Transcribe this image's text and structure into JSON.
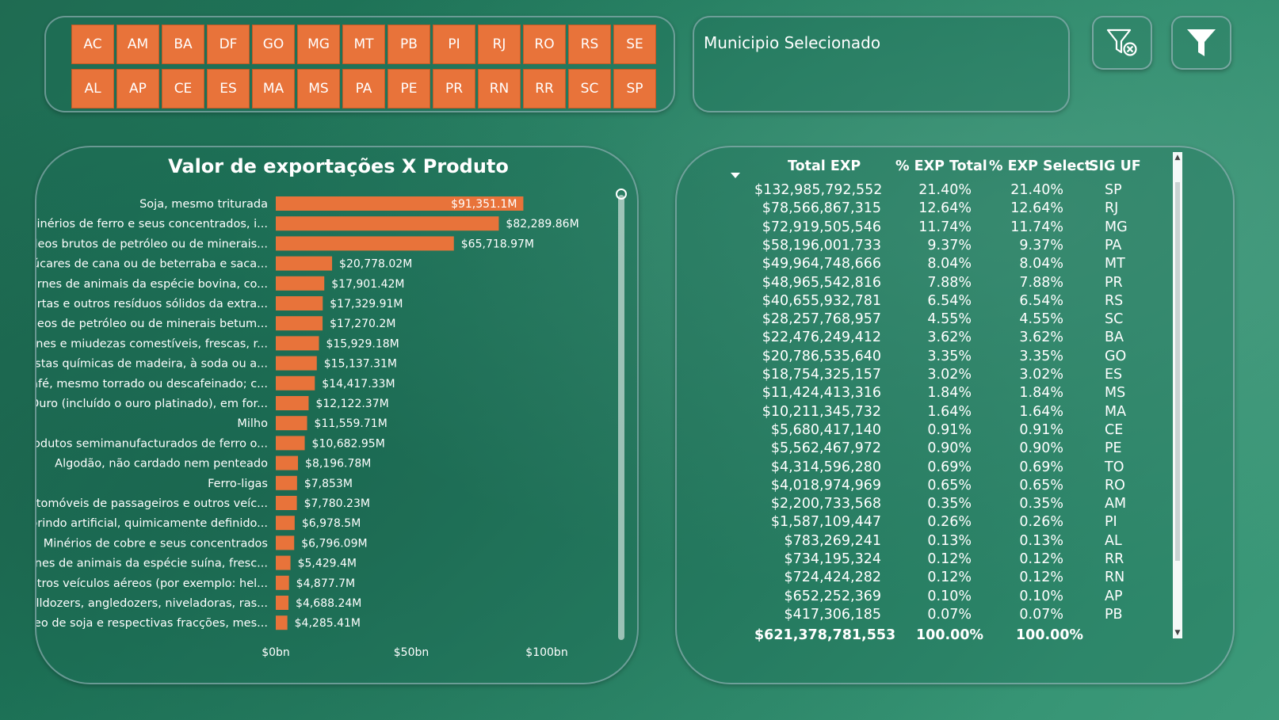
{
  "uf_buttons_row1": [
    "AC",
    "AM",
    "BA",
    "DF",
    "GO",
    "MG",
    "MT",
    "PB",
    "PI",
    "RJ",
    "RO",
    "RS",
    "SE"
  ],
  "uf_buttons_row2": [
    "AL",
    "AP",
    "CE",
    "ES",
    "MA",
    "MS",
    "PA",
    "PE",
    "PR",
    "RN",
    "RR",
    "SC",
    "SP"
  ],
  "municipio": {
    "title": "Municipio Selecionado"
  },
  "icons": {
    "clear_filter": "filter-clear-icon",
    "filter": "filter-icon"
  },
  "colors": {
    "accent": "#e8733a",
    "background": "#1e7a5c"
  },
  "chart_data": {
    "type": "bar",
    "orientation": "horizontal",
    "title": "Valor de exportações X Produto",
    "categories": [
      "Soja, mesmo triturada",
      "Minérios de ferro e seus concentrados, i...",
      "Óleos brutos de petróleo ou de minerais...",
      "Açúcares de cana ou de beterraba e saca...",
      "Carnes de animais da espécie bovina, co...",
      "Tortas e outros resíduos sólidos da extra...",
      "Óleos de petróleo ou de minerais betum...",
      "Carnes e miudezas comestíveis, frescas, r...",
      "Pastas químicas de madeira, à soda ou a...",
      "Café, mesmo torrado ou descafeinado; c...",
      "Ouro (incluído o ouro platinado), em for...",
      "Milho",
      "Produtos semimanufacturados de ferro o...",
      "Algodão, não cardado nem penteado",
      "Ferro-ligas",
      "Automóveis de passageiros e outros veíc...",
      "Corindo artificial, quimicamente definido...",
      "Minérios de cobre e seus concentrados",
      "Carnes de animais da espécie suína, fresc...",
      "Outros veículos aéreos (por exemplo: hel...",
      "Bulldozers, angledozers, niveladoras, ras...",
      "Óleo de soja e respectivas fracções, mes..."
    ],
    "values": [
      91351.1,
      82289.86,
      65718.97,
      20778.02,
      17901.42,
      17329.91,
      17270.2,
      15929.18,
      15137.31,
      14417.33,
      12122.37,
      11559.71,
      10682.95,
      8196.78,
      7853,
      7780.23,
      6978.5,
      6796.09,
      5429.4,
      4877.7,
      4688.24,
      4285.41
    ],
    "value_labels": [
      "$91,351.1M",
      "$82,289.86M",
      "$65,718.97M",
      "$20,778.02M",
      "$17,901.42M",
      "$17,329.91M",
      "$17,270.2M",
      "$15,929.18M",
      "$15,137.31M",
      "$14,417.33M",
      "$12,122.37M",
      "$11,559.71M",
      "$10,682.95M",
      "$8,196.78M",
      "$7,853M",
      "$7,780.23M",
      "$6,978.5M",
      "$6,796.09M",
      "$5,429.4M",
      "$4,877.7M",
      "$4,688.24M",
      "$4,285.41M"
    ],
    "unit": "M",
    "xlim": [
      0,
      100000
    ],
    "x_ticks": [
      0,
      50000,
      100000
    ],
    "x_tick_labels": [
      "$0bn",
      "$50bn",
      "$100bn"
    ],
    "xlabel": "",
    "ylabel": "",
    "grid": false,
    "bar_color": "#e8733a"
  },
  "table": {
    "headers": {
      "total": "Total EXP",
      "pct_total": "% EXP Total",
      "pct_select": "% EXP Select",
      "uf": "SIG UF"
    },
    "rows": [
      {
        "total": "$132,985,792,552",
        "pct_total": "21.40%",
        "pct_select": "21.40%",
        "uf": "SP"
      },
      {
        "total": "$78,566,867,315",
        "pct_total": "12.64%",
        "pct_select": "12.64%",
        "uf": "RJ"
      },
      {
        "total": "$72,919,505,546",
        "pct_total": "11.74%",
        "pct_select": "11.74%",
        "uf": "MG"
      },
      {
        "total": "$58,196,001,733",
        "pct_total": "9.37%",
        "pct_select": "9.37%",
        "uf": "PA"
      },
      {
        "total": "$49,964,748,666",
        "pct_total": "8.04%",
        "pct_select": "8.04%",
        "uf": "MT"
      },
      {
        "total": "$48,965,542,816",
        "pct_total": "7.88%",
        "pct_select": "7.88%",
        "uf": "PR"
      },
      {
        "total": "$40,655,932,781",
        "pct_total": "6.54%",
        "pct_select": "6.54%",
        "uf": "RS"
      },
      {
        "total": "$28,257,768,957",
        "pct_total": "4.55%",
        "pct_select": "4.55%",
        "uf": "SC"
      },
      {
        "total": "$22,476,249,412",
        "pct_total": "3.62%",
        "pct_select": "3.62%",
        "uf": "BA"
      },
      {
        "total": "$20,786,535,640",
        "pct_total": "3.35%",
        "pct_select": "3.35%",
        "uf": "GO"
      },
      {
        "total": "$18,754,325,157",
        "pct_total": "3.02%",
        "pct_select": "3.02%",
        "uf": "ES"
      },
      {
        "total": "$11,424,413,316",
        "pct_total": "1.84%",
        "pct_select": "1.84%",
        "uf": "MS"
      },
      {
        "total": "$10,211,345,732",
        "pct_total": "1.64%",
        "pct_select": "1.64%",
        "uf": "MA"
      },
      {
        "total": "$5,680,417,140",
        "pct_total": "0.91%",
        "pct_select": "0.91%",
        "uf": "CE"
      },
      {
        "total": "$5,562,467,972",
        "pct_total": "0.90%",
        "pct_select": "0.90%",
        "uf": "PE"
      },
      {
        "total": "$4,314,596,280",
        "pct_total": "0.69%",
        "pct_select": "0.69%",
        "uf": "TO"
      },
      {
        "total": "$4,018,974,969",
        "pct_total": "0.65%",
        "pct_select": "0.65%",
        "uf": "RO"
      },
      {
        "total": "$2,200,733,568",
        "pct_total": "0.35%",
        "pct_select": "0.35%",
        "uf": "AM"
      },
      {
        "total": "$1,587,109,447",
        "pct_total": "0.26%",
        "pct_select": "0.26%",
        "uf": "PI"
      },
      {
        "total": "$783,269,241",
        "pct_total": "0.13%",
        "pct_select": "0.13%",
        "uf": "AL"
      },
      {
        "total": "$734,195,324",
        "pct_total": "0.12%",
        "pct_select": "0.12%",
        "uf": "RR"
      },
      {
        "total": "$724,424,282",
        "pct_total": "0.12%",
        "pct_select": "0.12%",
        "uf": "RN"
      },
      {
        "total": "$652,252,369",
        "pct_total": "0.10%",
        "pct_select": "0.10%",
        "uf": "AP"
      },
      {
        "total": "$417,306,185",
        "pct_total": "0.07%",
        "pct_select": "0.07%",
        "uf": "PB"
      }
    ],
    "footer": {
      "total": "$621,378,781,553",
      "pct_total": "100.00%",
      "pct_select": "100.00%"
    }
  }
}
